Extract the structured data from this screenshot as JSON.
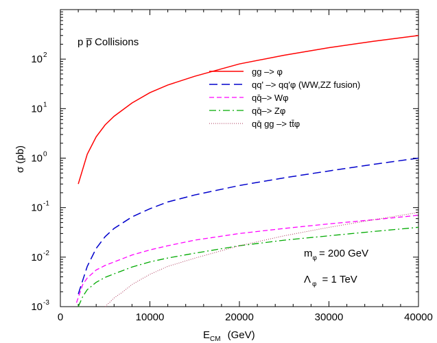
{
  "chart_data": {
    "type": "line",
    "title": "",
    "xlabel_main": "E",
    "xlabel_sub": "CM",
    "xlabel_unit": "(GeV)",
    "ylabel": "σ  (pb)",
    "xlim": [
      0,
      40000
    ],
    "ylim": [
      0.001,
      1000
    ],
    "yscale": "log",
    "grid": false,
    "legend_position": "center-right",
    "x_ticks": [
      "0",
      "10000",
      "20000",
      "30000",
      "40000"
    ],
    "y_ticks": [
      {
        "base": "10",
        "exp": "-3"
      },
      {
        "base": "10",
        "exp": "-2"
      },
      {
        "base": "10",
        "exp": "-1"
      },
      {
        "base": "10",
        "exp": "0"
      },
      {
        "base": "10",
        "exp": "1"
      },
      {
        "base": "10",
        "exp": "2"
      }
    ],
    "annotations": {
      "collisions": "p p̅ Collisions",
      "mass": "m",
      "mass_sub": "φ",
      "mass_value": "= 200 GeV",
      "lambda": "Λ",
      "lambda_sub": "φ",
      "lambda_value": "= 1 TeV"
    },
    "series": [
      {
        "name": "gg –> φ",
        "color": "#ff0000",
        "dash": "solid",
        "x": [
          2000,
          3000,
          4000,
          5000,
          6000,
          8000,
          10000,
          12000,
          15000,
          20000,
          25000,
          30000,
          35000,
          40000
        ],
        "y": [
          0.3,
          1.2,
          2.7,
          4.7,
          7.0,
          13,
          21,
          30,
          45,
          80,
          120,
          170,
          230,
          300
        ]
      },
      {
        "name": "qq' –> qq'φ (WW,ZZ fusion)",
        "color": "#0000cc",
        "dash": "long",
        "x": [
          2000,
          3000,
          4000,
          5000,
          6000,
          8000,
          10000,
          12000,
          15000,
          20000,
          25000,
          30000,
          35000,
          40000
        ],
        "y": [
          0.0018,
          0.0065,
          0.015,
          0.026,
          0.038,
          0.065,
          0.095,
          0.13,
          0.18,
          0.28,
          0.4,
          0.55,
          0.75,
          1.0
        ]
      },
      {
        "name": "qq̄–> Wφ",
        "color": "#ff00ff",
        "dash": "medium",
        "x": [
          1800,
          2500,
          3000,
          4000,
          5000,
          6000,
          8000,
          10000,
          12000,
          15000,
          20000,
          25000,
          30000,
          35000,
          40000
        ],
        "y": [
          0.0012,
          0.0028,
          0.0038,
          0.0055,
          0.0068,
          0.008,
          0.011,
          0.014,
          0.017,
          0.022,
          0.03,
          0.038,
          0.047,
          0.057,
          0.07
        ]
      },
      {
        "name": "qq̄–> Zφ",
        "color": "#00aa00",
        "dash": "dashdot",
        "x": [
          2000,
          2500,
          3000,
          4000,
          5000,
          6000,
          8000,
          10000,
          12000,
          15000,
          20000,
          25000,
          30000,
          35000,
          40000
        ],
        "y": [
          0.001,
          0.0016,
          0.0022,
          0.0031,
          0.0039,
          0.0046,
          0.0063,
          0.008,
          0.0096,
          0.012,
          0.017,
          0.022,
          0.027,
          0.033,
          0.04
        ]
      },
      {
        "name": "qq̄ gg –> tt̄φ",
        "color": "#aa3355",
        "dash": "dotted",
        "x": [
          5000,
          6000,
          7000,
          8000,
          10000,
          12000,
          15000,
          20000,
          25000,
          30000,
          35000,
          40000
        ],
        "y": [
          0.001,
          0.0015,
          0.002,
          0.0028,
          0.0045,
          0.0065,
          0.0095,
          0.017,
          0.027,
          0.04,
          0.057,
          0.08
        ]
      }
    ]
  }
}
